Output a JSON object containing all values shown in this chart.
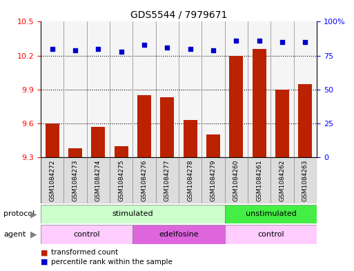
{
  "title": "GDS5544 / 7979671",
  "samples": [
    "GSM1084272",
    "GSM1084273",
    "GSM1084274",
    "GSM1084275",
    "GSM1084276",
    "GSM1084277",
    "GSM1084278",
    "GSM1084279",
    "GSM1084260",
    "GSM1084261",
    "GSM1084262",
    "GSM1084263"
  ],
  "bar_values": [
    9.6,
    9.38,
    9.57,
    9.4,
    9.85,
    9.83,
    9.63,
    9.5,
    10.2,
    10.26,
    9.9,
    9.95
  ],
  "dot_values": [
    80,
    79,
    80,
    78,
    83,
    81,
    80,
    79,
    86,
    86,
    85,
    85
  ],
  "bar_color": "#bb2200",
  "dot_color": "#0000cc",
  "ylim_left": [
    9.3,
    10.5
  ],
  "ylim_right": [
    0,
    100
  ],
  "yticks_left": [
    9.3,
    9.6,
    9.9,
    10.2,
    10.5
  ],
  "yticks_right": [
    0,
    25,
    50,
    75,
    100
  ],
  "ytick_labels_right": [
    "0",
    "25",
    "50",
    "75",
    "100%"
  ],
  "protocol_groups": [
    {
      "label": "stimulated",
      "start": 0,
      "end": 8,
      "color": "#ccffcc"
    },
    {
      "label": "unstimulated",
      "start": 8,
      "end": 12,
      "color": "#44ee44"
    }
  ],
  "agent_groups": [
    {
      "label": "control",
      "start": 0,
      "end": 4,
      "color": "#ffccff"
    },
    {
      "label": "edelfosine",
      "start": 4,
      "end": 8,
      "color": "#dd66dd"
    },
    {
      "label": "control",
      "start": 8,
      "end": 12,
      "color": "#ffccff"
    }
  ],
  "legend_bar_label": "transformed count",
  "legend_dot_label": "percentile rank within the sample",
  "protocol_label": "protocol",
  "agent_label": "agent",
  "sample_bg": "#dddddd",
  "plot_bg": "#f5f5f5"
}
